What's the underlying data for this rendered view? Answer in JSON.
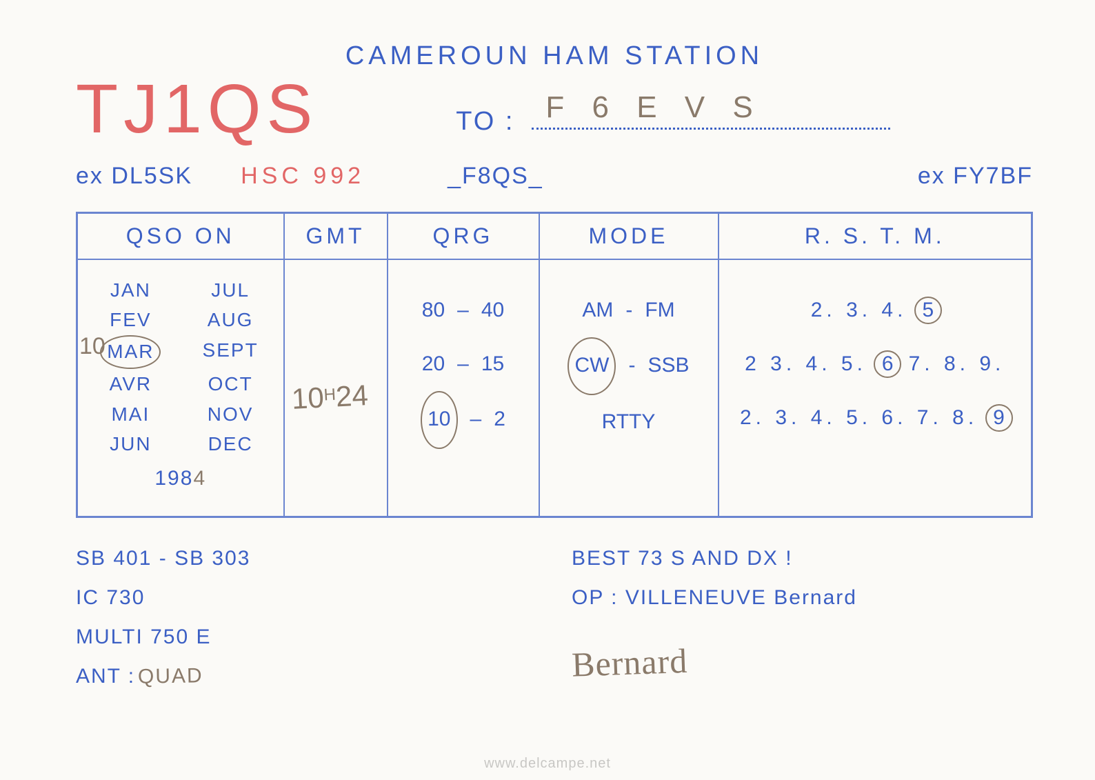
{
  "colors": {
    "blue": "#3b5fc4",
    "red": "#e26666",
    "pen": "#8a7a6a",
    "border": "#6b85d0",
    "background": "#fbfaf7"
  },
  "header": {
    "title": "CAMEROUN  HAM  STATION",
    "callsign": "TJ1QS",
    "to_label": "TO :",
    "to_value": "F 6 E V S"
  },
  "ex_row": {
    "ex_dl": "ex DL5SK",
    "hsc": "HSC 992",
    "f8qs": "_F8QS_",
    "ex_fy": "ex FY7BF"
  },
  "table": {
    "headers": {
      "qso": "QSO  ON",
      "gmt": "GMT",
      "qrg": "QRG",
      "mode": "MODE",
      "rstm": "R. S. T. M."
    },
    "qso_on": {
      "day_written": "10",
      "months_left": [
        "JAN",
        "FEV",
        "MAR",
        "AVR",
        "MAI",
        "JUN"
      ],
      "months_right": [
        "JUL",
        "AUG",
        "SEPT",
        "OCT",
        "NOV",
        "DEC"
      ],
      "circled_month": "MAR",
      "year_prefix": "198",
      "year_written": "4"
    },
    "gmt": {
      "value_main": "10",
      "value_sup": "H",
      "value_tail": "24"
    },
    "qrg": {
      "rows": [
        {
          "a": "80",
          "b": "40",
          "circled": null
        },
        {
          "a": "20",
          "b": "15",
          "circled": null
        },
        {
          "a": "10",
          "b": "2",
          "circled": "a"
        }
      ]
    },
    "mode": {
      "rows": [
        {
          "a": "AM",
          "b": "FM",
          "sep": "-",
          "circled": null
        },
        {
          "a": "CW",
          "b": "SSB",
          "sep": "-",
          "circled": "a"
        },
        {
          "a": "RTTY",
          "b": "",
          "sep": "",
          "circled": null
        }
      ]
    },
    "rstm": {
      "rows": [
        {
          "nums": [
            "2.",
            "3.",
            "4.",
            "5."
          ],
          "circled_index": 3
        },
        {
          "nums": [
            "2",
            "3.",
            "4.",
            "5.",
            "6.",
            "7.",
            "8.",
            "9."
          ],
          "circled_index": 4
        },
        {
          "nums": [
            "2.",
            "3.",
            "4.",
            "5.",
            "6.",
            "7.",
            "8.",
            "9."
          ],
          "circled_index": 7
        }
      ]
    }
  },
  "bottom": {
    "left_lines": [
      "SB 401 - SB 303",
      "IC 730",
      "MULTI 750 E"
    ],
    "ant_label": "ANT :",
    "ant_value": "QUAD",
    "best73": "BEST 73 S AND DX !",
    "op_label": "OP :",
    "op_name": "VILLENEUVE Bernard",
    "signature": "Bernard"
  },
  "watermark": "www.delcampe.net"
}
